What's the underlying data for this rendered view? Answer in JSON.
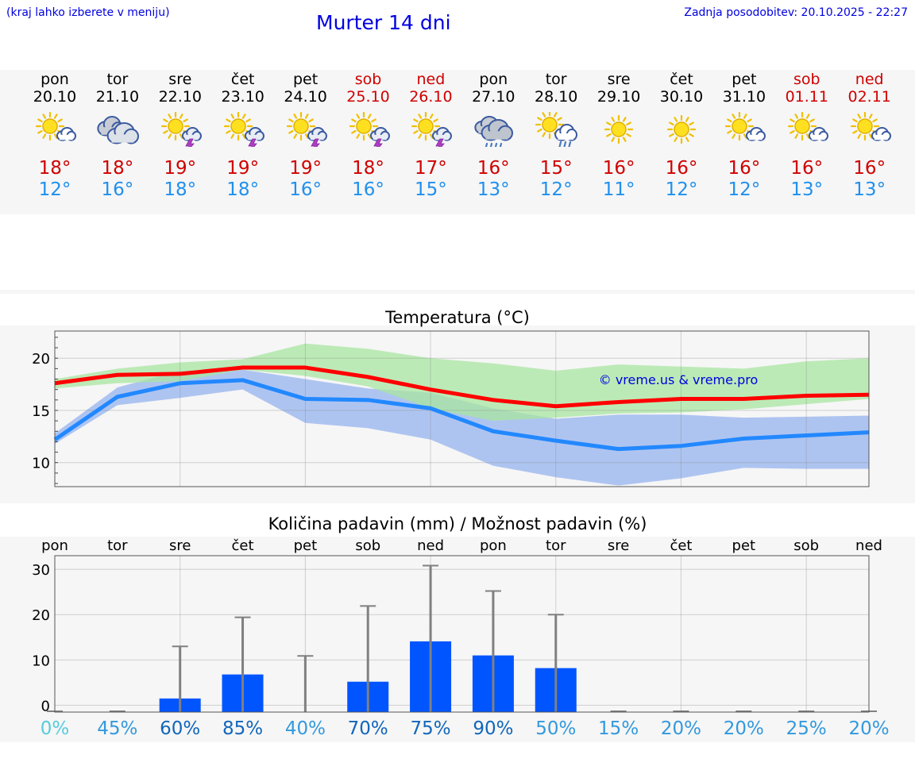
{
  "header": {
    "hint": "(kraj lahko izberete v meniju)",
    "title": "Murter 14 dni",
    "updated": "Zadnja posodobitev: 20.10.2025 - 22:27"
  },
  "days": [
    {
      "name": "pon",
      "date": "20.10",
      "weekend": false,
      "icon": "sun-partly-cloudy-icon",
      "tmax": "18°",
      "tmin": "12°"
    },
    {
      "name": "tor",
      "date": "21.10",
      "weekend": false,
      "icon": "cloudy-icon",
      "tmax": "18°",
      "tmin": "16°"
    },
    {
      "name": "sre",
      "date": "22.10",
      "weekend": false,
      "icon": "sun-cloud-thunder-icon",
      "tmax": "19°",
      "tmin": "18°"
    },
    {
      "name": "čet",
      "date": "23.10",
      "weekend": false,
      "icon": "sun-cloud-thunder-icon",
      "tmax": "19°",
      "tmin": "18°"
    },
    {
      "name": "pet",
      "date": "24.10",
      "weekend": false,
      "icon": "sun-cloud-thunder-icon",
      "tmax": "19°",
      "tmin": "16°"
    },
    {
      "name": "sob",
      "date": "25.10",
      "weekend": true,
      "icon": "sun-cloud-thunder-icon",
      "tmax": "18°",
      "tmin": "16°"
    },
    {
      "name": "ned",
      "date": "26.10",
      "weekend": true,
      "icon": "sun-cloud-thunder-icon",
      "tmax": "17°",
      "tmin": "15°"
    },
    {
      "name": "pon",
      "date": "27.10",
      "weekend": false,
      "icon": "cloud-rain-icon",
      "tmax": "16°",
      "tmin": "13°"
    },
    {
      "name": "tor",
      "date": "28.10",
      "weekend": false,
      "icon": "sun-cloud-rain-icon",
      "tmax": "15°",
      "tmin": "12°"
    },
    {
      "name": "sre",
      "date": "29.10",
      "weekend": false,
      "icon": "sun-icon",
      "tmax": "16°",
      "tmin": "11°"
    },
    {
      "name": "čet",
      "date": "30.10",
      "weekend": false,
      "icon": "sun-icon",
      "tmax": "16°",
      "tmin": "12°"
    },
    {
      "name": "pet",
      "date": "31.10",
      "weekend": false,
      "icon": "sun-partly-cloudy-icon",
      "tmax": "16°",
      "tmin": "12°"
    },
    {
      "name": "sob",
      "date": "01.11",
      "weekend": true,
      "icon": "sun-partly-cloudy-icon",
      "tmax": "16°",
      "tmin": "13°"
    },
    {
      "name": "ned",
      "date": "02.11",
      "weekend": true,
      "icon": "sun-partly-cloudy-icon",
      "tmax": "16°",
      "tmin": "13°"
    }
  ],
  "colors": {
    "title": "#0000e0",
    "weekday": "#000000",
    "weekend": "#d00000",
    "tmax": "#d00000",
    "tmin": "#2090ee",
    "maxLine": "#ff0000",
    "minLine": "#2288ff",
    "maxBand": "#a8e6a0",
    "minBand": "#a6bff0",
    "overlap": "#7fc6a6",
    "bar": "#0055ff",
    "errorbar": "#808080"
  },
  "chart_data": [
    {
      "type": "line",
      "title": "Temperatura (°C)",
      "watermark": "© vreme.us & vreme.pro",
      "x": [
        0,
        1,
        2,
        3,
        4,
        5,
        6,
        7,
        8,
        9,
        10,
        11,
        12,
        13
      ],
      "ylim": [
        7.7,
        22.6
      ],
      "yticks": [
        10,
        15,
        20
      ],
      "series": [
        {
          "name": "max",
          "values": [
            17.6,
            18.4,
            18.5,
            19.1,
            19.1,
            18.2,
            17.0,
            16.0,
            15.4,
            15.8,
            16.1,
            16.1,
            16.4,
            16.5
          ],
          "low": [
            17.1,
            17.6,
            17.8,
            18.9,
            18.3,
            17.3,
            15.2,
            14.0,
            14.3,
            14.7,
            14.8,
            15.1,
            15.6,
            16.1
          ],
          "high": [
            18.0,
            19.0,
            19.6,
            19.9,
            21.4,
            20.9,
            20.0,
            19.5,
            18.8,
            19.4,
            19.2,
            19.0,
            19.7,
            20.0
          ]
        },
        {
          "name": "min",
          "values": [
            12.2,
            16.3,
            17.6,
            17.9,
            16.1,
            16.0,
            15.2,
            13.0,
            12.1,
            11.3,
            11.6,
            12.3,
            12.6,
            12.9
          ],
          "low": [
            11.8,
            15.5,
            16.2,
            17.0,
            13.8,
            13.3,
            12.2,
            9.7,
            8.6,
            7.8,
            8.5,
            9.5,
            9.4,
            9.4
          ],
          "high": [
            12.8,
            17.2,
            18.8,
            18.9,
            18.0,
            17.1,
            16.7,
            15.2,
            14.2,
            14.6,
            14.6,
            14.3,
            14.4,
            14.5
          ]
        }
      ]
    },
    {
      "type": "bar",
      "title": "Količina padavin (mm) / Možnost padavin (%)",
      "categories": [
        "pon",
        "tor",
        "sre",
        "čet",
        "pet",
        "sob",
        "ned",
        "pon",
        "tor",
        "sre",
        "čet",
        "pet",
        "sob",
        "ned"
      ],
      "values": [
        0,
        0,
        1.5,
        6.8,
        0,
        5.2,
        14.1,
        11.0,
        8.2,
        0,
        0,
        0,
        0,
        0
      ],
      "error_high": [
        0,
        0,
        13,
        19.4,
        10.9,
        21.9,
        30.8,
        25.2,
        20.0,
        0,
        0,
        0,
        0,
        0
      ],
      "ylim": [
        -1.5,
        33
      ],
      "yticks": [
        0,
        10,
        20,
        30
      ],
      "probability": [
        "0%",
        "45%",
        "60%",
        "85%",
        "40%",
        "70%",
        "75%",
        "90%",
        "50%",
        "15%",
        "20%",
        "20%",
        "25%",
        "20%"
      ],
      "probability_colors": [
        "#55ccdd",
        "#3399dd",
        "#1166bb",
        "#1166bb",
        "#3399dd",
        "#1166bb",
        "#1166bb",
        "#1166bb",
        "#3399dd",
        "#3399dd",
        "#3399dd",
        "#3399dd",
        "#3399dd",
        "#3399dd"
      ]
    }
  ]
}
